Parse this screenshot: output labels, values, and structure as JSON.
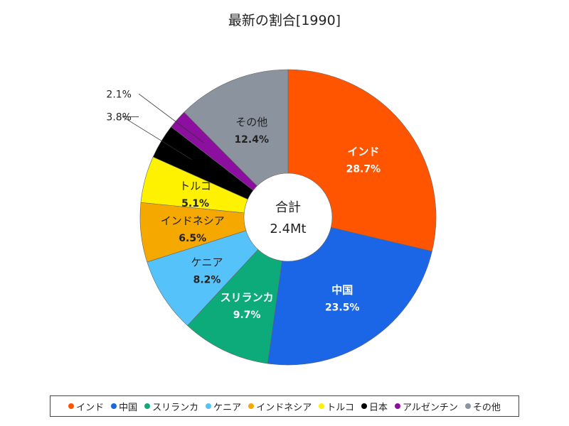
{
  "chart_data": {
    "type": "donut",
    "title": "最新の割合[1990]",
    "center_label": "合計",
    "center_value": "2.4Mt",
    "slices": [
      {
        "name": "インド",
        "value": 28.7,
        "label": "28.7%",
        "color": "#ff5500",
        "text_color": "#ffffff"
      },
      {
        "name": "中国",
        "value": 23.5,
        "label": "23.5%",
        "color": "#1a66e6",
        "text_color": "#ffffff"
      },
      {
        "name": "スリランカ",
        "value": 9.7,
        "label": "9.7%",
        "color": "#0dab7a",
        "text_color": "#ffffff"
      },
      {
        "name": "ケニア",
        "value": 8.2,
        "label": "8.2%",
        "color": "#55c3fa",
        "text_color": "#222222"
      },
      {
        "name": "インドネシア",
        "value": 6.5,
        "label": "6.5%",
        "color": "#f5a800",
        "text_color": "#222222"
      },
      {
        "name": "トルコ",
        "value": 5.1,
        "label": "5.1%",
        "color": "#fff200",
        "text_color": "#222222"
      },
      {
        "name": "日本",
        "value": 3.8,
        "label": "3.8%",
        "color": "#000000",
        "text_color": "#222222"
      },
      {
        "name": "アルゼンチン",
        "value": 2.1,
        "label": "2.1%",
        "color": "#8d0fa0",
        "text_color": "#222222"
      },
      {
        "name": "その他",
        "value": 12.4,
        "label": "12.4%",
        "color": "#8a939e",
        "text_color": "#222222"
      }
    ],
    "legend": [
      "インド",
      "中国",
      "スリランカ",
      "ケニア",
      "インドネシア",
      "トルコ",
      "日本",
      "アルゼンチン",
      "その他"
    ]
  }
}
